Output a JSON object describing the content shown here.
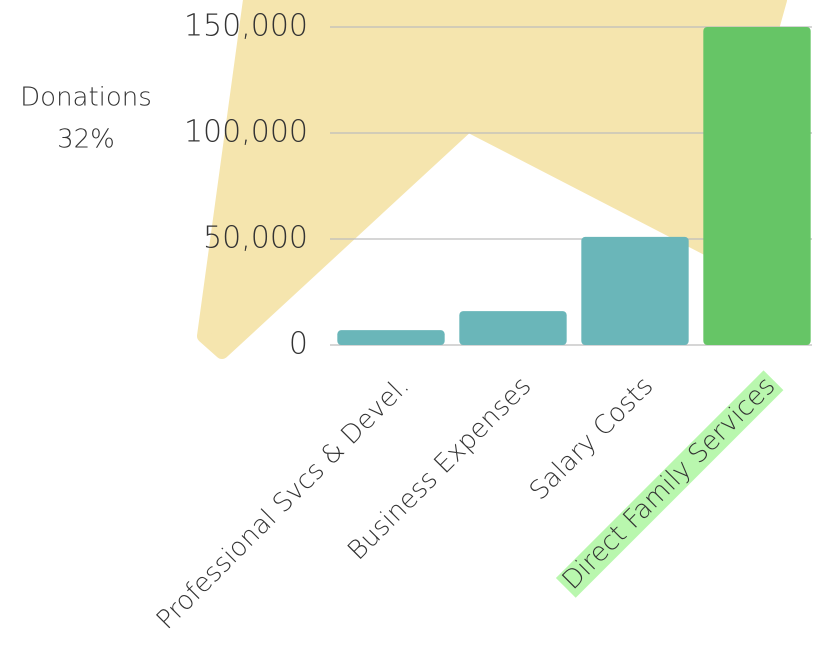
{
  "chart_data": {
    "type": "bar",
    "annotation_lines": [
      "Donations",
      "32%"
    ],
    "categories": [
      "Professional Svcs & Devel.",
      "Business Expenses",
      "Salary Costs",
      "Direct Family Services"
    ],
    "values": [
      7000,
      16000,
      51000,
      150000
    ],
    "colors": [
      "#6ab6b9",
      "#6ab6b9",
      "#6ab6b9",
      "#66c566"
    ],
    "highlighted_index": 3,
    "highlight_color": "#b9f7ae",
    "ylim": [
      0,
      150000
    ],
    "yticks": [
      0,
      {
        "value": 50000,
        "label": "50,000"
      },
      {
        "value": 100000,
        "label": "100,000"
      },
      {
        "value": 150000,
        "label": "150,000"
      }
    ],
    "grid": true
  }
}
